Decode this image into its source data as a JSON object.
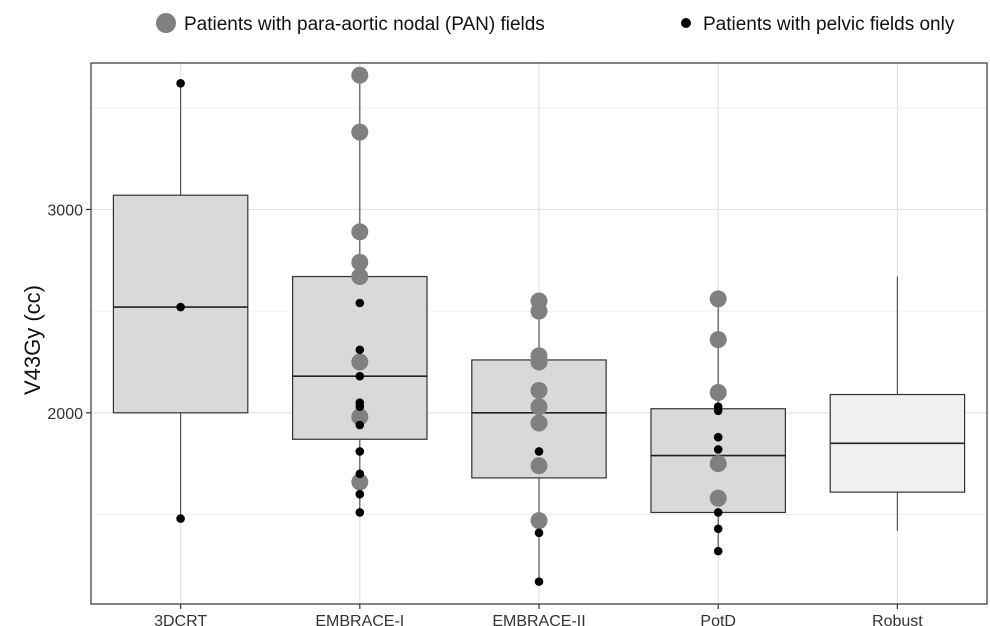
{
  "chart_data": {
    "type": "box",
    "title": "",
    "xlabel": "",
    "ylabel": "V43Gy (cc)",
    "ylim": [
      1060,
      3720
    ],
    "yticks": [
      2000,
      3000
    ],
    "grid": true,
    "legend_position": "top",
    "legend": [
      {
        "name": "Patients with para-aortic nodal (PAN) fields",
        "color": "#808080",
        "marker": "large-circle"
      },
      {
        "name": "Patients with pelvic fields only",
        "color": "#000000",
        "marker": "small-circle"
      }
    ],
    "categories": [
      "3DCRT",
      "EMBRACE-I",
      "EMBRACE-II",
      "PotD",
      "Robust"
    ],
    "boxes": [
      {
        "category": "3DCRT",
        "whisker_low": 1480,
        "q1": 2000,
        "median": 2520,
        "q3": 3070,
        "whisker_high": 3620,
        "fill": "#d9d9d9"
      },
      {
        "category": "EMBRACE-I",
        "whisker_low": 1510,
        "q1": 1870,
        "median": 2180,
        "q3": 2670,
        "whisker_high": 3660,
        "fill": "#d9d9d9"
      },
      {
        "category": "EMBRACE-II",
        "whisker_low": 1170,
        "q1": 1680,
        "median": 2000,
        "q3": 2260,
        "whisker_high": 2550,
        "fill": "#d9d9d9"
      },
      {
        "category": "PotD",
        "whisker_low": 1320,
        "q1": 1510,
        "median": 1790,
        "q3": 2020,
        "whisker_high": 2560,
        "fill": "#d9d9d9"
      },
      {
        "category": "Robust",
        "whisker_low": 1420,
        "q1": 1610,
        "median": 1850,
        "q3": 2090,
        "whisker_high": 2670,
        "fill": "#f0f0f0"
      }
    ],
    "series": [
      {
        "name": "Patients with para-aortic nodal (PAN) fields",
        "points": [
          {
            "category": "EMBRACE-I",
            "values": [
              3660,
              3380,
              2890,
              2740,
              2670,
              2250,
              1980,
              1660
            ]
          },
          {
            "category": "EMBRACE-II",
            "values": [
              2550,
              2500,
              2280,
              2250,
              2110,
              2030,
              1950,
              1740,
              1470
            ]
          },
          {
            "category": "PotD",
            "values": [
              2560,
              2360,
              2100,
              1750,
              1580
            ]
          }
        ]
      },
      {
        "name": "Patients with pelvic fields only",
        "points": [
          {
            "category": "3DCRT",
            "values": [
              3620,
              2520,
              1480
            ]
          },
          {
            "category": "EMBRACE-I",
            "values": [
              2540,
              2310,
              2180,
              2050,
              2030,
              1940,
              1810,
              1700,
              1600,
              1510
            ]
          },
          {
            "category": "EMBRACE-II",
            "values": [
              1810,
              1410,
              1170
            ]
          },
          {
            "category": "PotD",
            "values": [
              2030,
              2010,
              1880,
              1820,
              1510,
              1430,
              1320
            ]
          }
        ]
      }
    ]
  }
}
